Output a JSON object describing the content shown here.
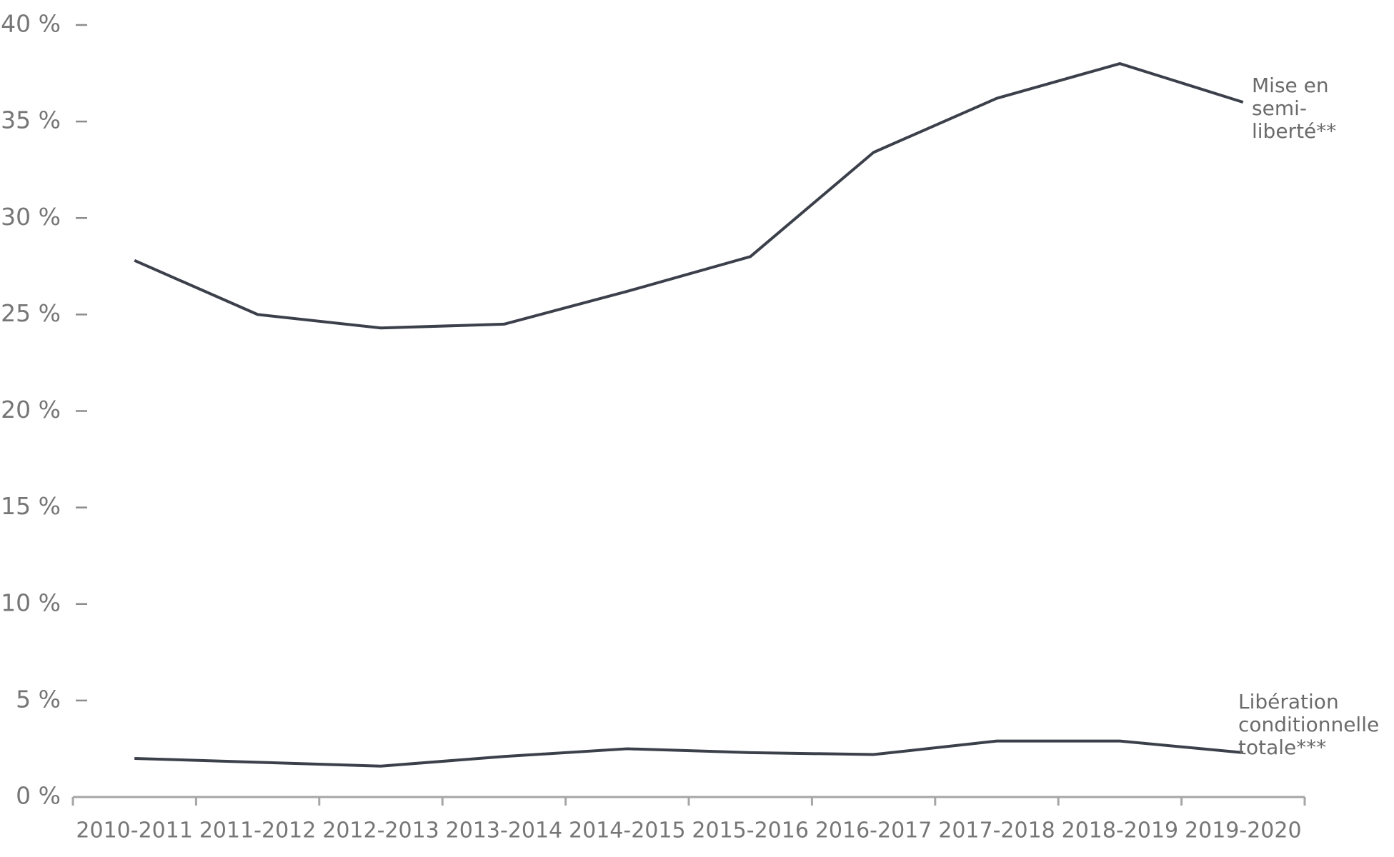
{
  "chart_data": {
    "type": "line",
    "categories": [
      "2010-2011",
      "2011-2012",
      "2012-2013",
      "2013-2014",
      "2014-2015",
      "2015-2016",
      "2016-2017",
      "2017-2018",
      "2018-2019",
      "2019-2020"
    ],
    "series": [
      {
        "name": "Mise en semi-liberté**",
        "color": "#3b404b",
        "values": [
          27.8,
          25.0,
          24.3,
          24.5,
          26.2,
          28.0,
          33.4,
          36.2,
          38.0,
          36.0
        ]
      },
      {
        "name": "Libération conditionnelle totale***",
        "color": "#3b404b",
        "values": [
          2.0,
          1.8,
          1.6,
          2.1,
          2.5,
          2.3,
          2.2,
          2.9,
          2.9,
          2.3
        ]
      }
    ],
    "ylim": [
      0,
      40
    ],
    "yticks": [
      {
        "value": 0,
        "label": "0 %"
      },
      {
        "value": 5,
        "label": "5 %"
      },
      {
        "value": 10,
        "label": "10 %"
      },
      {
        "value": 15,
        "label": "15 %"
      },
      {
        "value": 20,
        "label": "20 %"
      },
      {
        "value": 25,
        "label": "25 %"
      },
      {
        "value": 30,
        "label": "30 %"
      },
      {
        "value": 35,
        "label": "35 %"
      },
      {
        "value": 40,
        "label": "40 %"
      }
    ],
    "grid": false
  }
}
